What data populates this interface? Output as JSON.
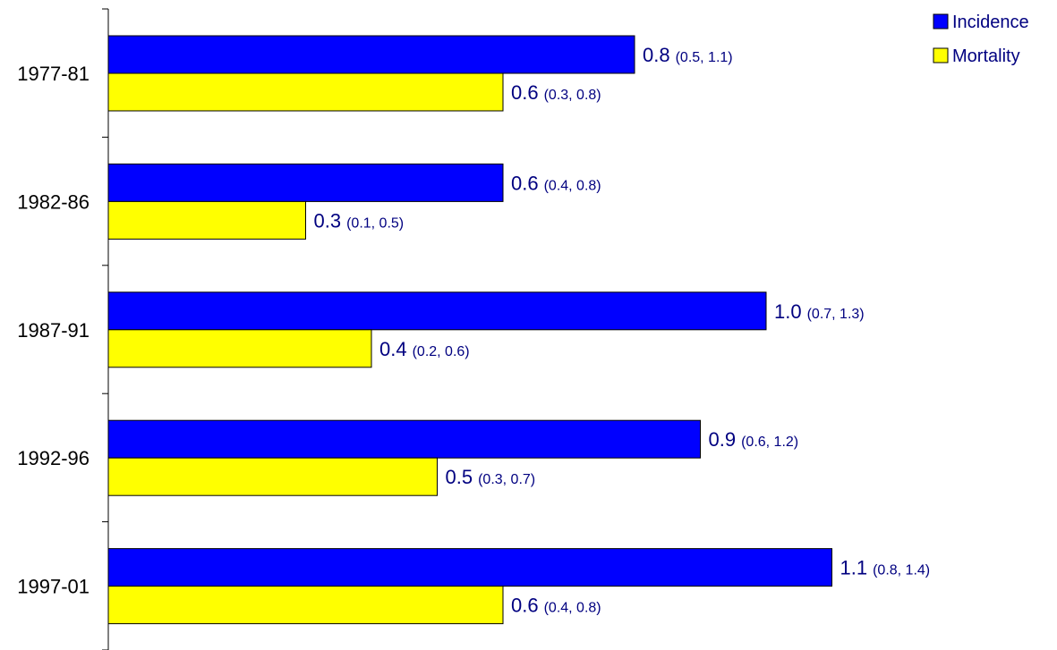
{
  "chart_data": {
    "type": "bar",
    "orientation": "horizontal",
    "title": "",
    "xlabel": "",
    "ylabel": "",
    "xlim": [
      0,
      1.1
    ],
    "grid": false,
    "legend_position": "top-right",
    "categories": [
      "1977-81",
      "1982-86",
      "1987-91",
      "1992-96",
      "1997-01"
    ],
    "series": [
      {
        "name": "Incidence",
        "color": "#0000FF",
        "values": [
          0.8,
          0.6,
          1.0,
          0.9,
          1.1
        ],
        "labels": [
          "0.8",
          "0.6",
          "1.0",
          "0.9",
          "1.1"
        ],
        "ci_labels": [
          "(0.5, 1.1)",
          "(0.4, 0.8)",
          "(0.7, 1.3)",
          "(0.6, 1.2)",
          "(0.8, 1.4)"
        ]
      },
      {
        "name": "Mortality",
        "color": "#FFFF00",
        "values": [
          0.6,
          0.3,
          0.4,
          0.5,
          0.6
        ],
        "labels": [
          "0.6",
          "0.3",
          "0.4",
          "0.5",
          "0.6"
        ],
        "ci_labels": [
          "(0.3, 0.8)",
          "(0.1, 0.5)",
          "(0.2, 0.6)",
          "(0.3, 0.7)",
          "(0.4, 0.8)"
        ]
      }
    ]
  }
}
